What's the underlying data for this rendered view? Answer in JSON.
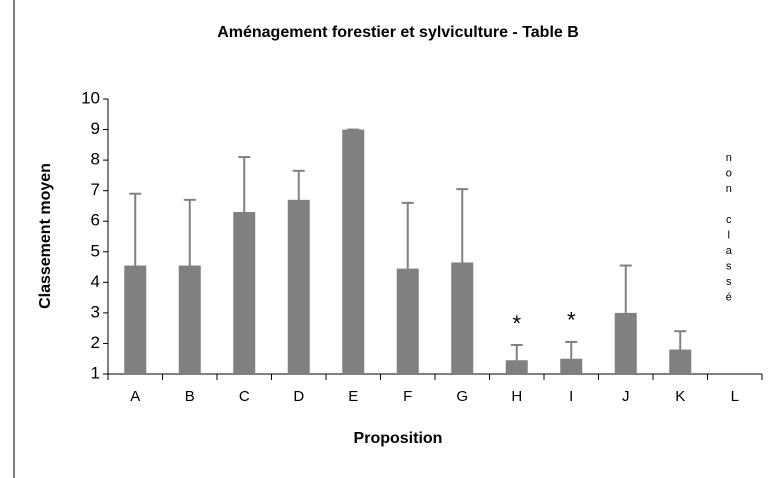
{
  "chart_data": {
    "type": "bar",
    "title": "Aménagement forestier et sylviculture - Table B",
    "x_label": "Proposition",
    "y_label": "Classement moyen",
    "categories": [
      "A",
      "B",
      "C",
      "D",
      "E",
      "F",
      "G",
      "H",
      "I",
      "J",
      "K",
      "L"
    ],
    "values": [
      4.55,
      4.55,
      6.3,
      6.7,
      9.0,
      4.45,
      4.65,
      1.45,
      1.5,
      3.0,
      1.8,
      null
    ],
    "errors": [
      2.35,
      2.15,
      1.8,
      0.95,
      0,
      2.15,
      2.4,
      0.5,
      0.55,
      1.55,
      0.6,
      null
    ],
    "color": "#808080",
    "ylim": [
      1,
      10
    ],
    "yticks": [
      1,
      2,
      3,
      4,
      5,
      6,
      7,
      8,
      9,
      10
    ],
    "annotations": [
      {
        "text": "*",
        "x": "H"
      },
      {
        "text": "*",
        "x": "I"
      },
      {
        "text": "non classé",
        "x": "L"
      }
    ]
  }
}
